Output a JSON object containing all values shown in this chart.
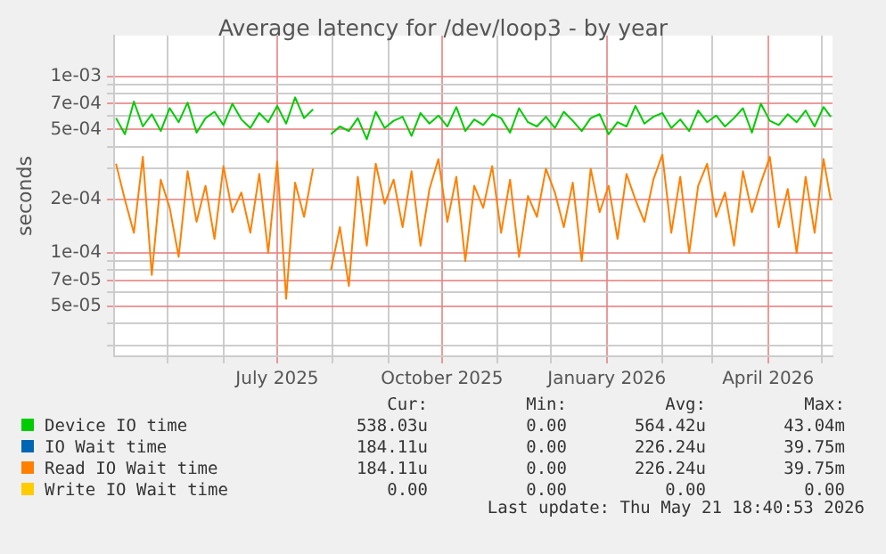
{
  "chart_data": {
    "type": "line",
    "title": "Average latency for /dev/loop3 - by year",
    "ylabel": "seconds",
    "log": "y",
    "grid": true,
    "legend": "bottom",
    "marker": "none",
    "line_style": "solid",
    "ylim": [
      2.6e-05,
      0.0017
    ],
    "yticks": [
      {
        "value": 3e-05,
        "label": null
      },
      {
        "value": 4e-05,
        "label": null
      },
      {
        "value": 5e-05,
        "label": "5e-05"
      },
      {
        "value": 6e-05,
        "label": null
      },
      {
        "value": 7e-05,
        "label": "7e-05"
      },
      {
        "value": 8e-05,
        "label": null
      },
      {
        "value": 9e-05,
        "label": null
      },
      {
        "value": 0.0001,
        "label": "1e-04"
      },
      {
        "value": 0.0002,
        "label": "2e-04"
      },
      {
        "value": 0.0003,
        "label": null
      },
      {
        "value": 0.0004,
        "label": null
      },
      {
        "value": 0.0005,
        "label": "5e-04"
      },
      {
        "value": 0.0006,
        "label": null
      },
      {
        "value": 0.0007,
        "label": "7e-04"
      },
      {
        "value": 0.0008,
        "label": null
      },
      {
        "value": 0.0009,
        "label": null
      },
      {
        "value": 0.001,
        "label": "1e-03"
      }
    ],
    "xlim": [
      "2025-04-01",
      "2026-05-07"
    ],
    "xticks": [
      {
        "value": "2025-05-01",
        "label": null
      },
      {
        "value": "2025-06-01",
        "label": null
      },
      {
        "value": "2025-07-01",
        "label": "July 2025"
      },
      {
        "value": "2025-08-01",
        "label": null
      },
      {
        "value": "2025-09-01",
        "label": null
      },
      {
        "value": "2025-10-01",
        "label": "October 2025"
      },
      {
        "value": "2025-11-01",
        "label": null
      },
      {
        "value": "2025-12-01",
        "label": null
      },
      {
        "value": "2026-01-01",
        "label": "January 2026"
      },
      {
        "value": "2026-02-01",
        "label": null
      },
      {
        "value": "2026-03-01",
        "label": null
      },
      {
        "value": "2026-04-01",
        "label": "April 2026"
      },
      {
        "value": "2026-05-01",
        "label": null
      }
    ],
    "x": [
      "2025-04-02",
      "2025-04-07",
      "2025-04-12",
      "2025-04-17",
      "2025-04-22",
      "2025-04-27",
      "2025-05-02",
      "2025-05-07",
      "2025-05-12",
      "2025-05-17",
      "2025-05-22",
      "2025-05-27",
      "2025-06-01",
      "2025-06-06",
      "2025-06-11",
      "2025-06-16",
      "2025-06-21",
      "2025-06-26",
      "2025-07-01",
      "2025-07-06",
      "2025-07-11",
      "2025-07-16",
      "2025-07-21",
      "2025-07-26",
      "2025-07-31",
      "2025-08-05",
      "2025-08-10",
      "2025-08-15",
      "2025-08-20",
      "2025-08-25",
      "2025-08-30",
      "2025-09-04",
      "2025-09-09",
      "2025-09-14",
      "2025-09-19",
      "2025-09-24",
      "2025-09-29",
      "2025-10-04",
      "2025-10-09",
      "2025-10-14",
      "2025-10-19",
      "2025-10-24",
      "2025-10-29",
      "2025-11-03",
      "2025-11-08",
      "2025-11-13",
      "2025-11-18",
      "2025-11-23",
      "2025-11-28",
      "2025-12-03",
      "2025-12-08",
      "2025-12-13",
      "2025-12-18",
      "2025-12-23",
      "2025-12-28",
      "2026-01-02",
      "2026-01-07",
      "2026-01-12",
      "2026-01-17",
      "2026-01-22",
      "2026-01-27",
      "2026-02-01",
      "2026-02-06",
      "2026-02-11",
      "2026-02-16",
      "2026-02-21",
      "2026-02-26",
      "2026-03-03",
      "2026-03-08",
      "2026-03-13",
      "2026-03-18",
      "2026-03-23",
      "2026-03-28",
      "2026-04-02",
      "2026-04-07",
      "2026-04-12",
      "2026-04-17",
      "2026-04-22",
      "2026-04-27",
      "2026-05-02",
      "2026-05-06"
    ],
    "series": [
      {
        "name": "Device IO time",
        "color": "#00cc00",
        "values": [
          0.00058,
          0.00047,
          0.00072,
          0.00052,
          0.00061,
          0.00049,
          0.00066,
          0.00055,
          0.00071,
          0.00048,
          0.00058,
          0.00063,
          0.00053,
          0.0007,
          0.00057,
          0.00051,
          0.00062,
          0.00055,
          0.00068,
          0.00054,
          0.00076,
          0.00058,
          0.00065,
          null,
          0.00047,
          0.00052,
          0.00049,
          0.00058,
          0.00044,
          0.00063,
          0.00051,
          0.00056,
          0.00059,
          0.00046,
          0.00062,
          0.00054,
          0.0006,
          0.00052,
          0.00067,
          0.00049,
          0.00057,
          0.00053,
          0.00061,
          0.00058,
          0.00048,
          0.00066,
          0.00055,
          0.00052,
          0.00059,
          0.00051,
          0.00063,
          0.00056,
          0.00049,
          0.00058,
          0.00061,
          0.00047,
          0.00055,
          0.00052,
          0.00068,
          0.00054,
          0.00059,
          0.00062,
          0.00051,
          0.00057,
          0.00049,
          0.00064,
          0.00055,
          0.0006,
          0.00052,
          0.00058,
          0.00066,
          0.00048,
          0.0007,
          0.00056,
          0.00053,
          0.00061,
          0.00055,
          0.00064,
          0.00052,
          0.00067,
          0.00059
        ]
      },
      {
        "name": "IO Wait time",
        "color": "#0066b3",
        "values": [
          null,
          null,
          null,
          null,
          null,
          null,
          null,
          null,
          null,
          null,
          null,
          null,
          null,
          null,
          null,
          null,
          null,
          null,
          null,
          null,
          null,
          null,
          null,
          null,
          null,
          null,
          null,
          null,
          null,
          null,
          null,
          null,
          null,
          null,
          null,
          null,
          null,
          null,
          null,
          null,
          null,
          null,
          null,
          null,
          null,
          null,
          null,
          null,
          null,
          null,
          null,
          null,
          null,
          null,
          null,
          null,
          null,
          null,
          null,
          null,
          null,
          null,
          null,
          null,
          null,
          null,
          null,
          null,
          null,
          null,
          null,
          null,
          null,
          null,
          null,
          null,
          null,
          null,
          null,
          null,
          null
        ]
      },
      {
        "name": "Read IO Wait time",
        "color": "#ff8000",
        "values": [
          0.00032,
          0.0002,
          0.00013,
          0.00035,
          7.5e-05,
          0.00026,
          0.00018,
          9.5e-05,
          0.00029,
          0.00015,
          0.00024,
          0.00012,
          0.00031,
          0.00017,
          0.00022,
          0.00013,
          0.00028,
          0.0001,
          0.00033,
          5.5e-05,
          0.00025,
          0.00016,
          0.0003,
          null,
          8e-05,
          0.00014,
          6.5e-05,
          0.00027,
          0.00011,
          0.00032,
          0.00019,
          0.00026,
          0.00014,
          0.00029,
          0.00011,
          0.00023,
          0.00034,
          0.00015,
          0.00027,
          9e-05,
          0.00024,
          0.00018,
          0.00031,
          0.00013,
          0.00026,
          9.5e-05,
          0.00021,
          0.00016,
          0.0003,
          0.00022,
          0.00014,
          0.00025,
          9e-05,
          0.0003,
          0.00017,
          0.00024,
          0.00012,
          0.00028,
          0.0002,
          0.00015,
          0.00026,
          0.00036,
          0.00013,
          0.00027,
          0.0001,
          0.00024,
          0.00032,
          0.00016,
          0.00022,
          0.00011,
          0.00029,
          0.00017,
          0.00025,
          0.00035,
          0.00014,
          0.00023,
          0.0001,
          0.00027,
          0.00013,
          0.00034,
          0.0002
        ]
      },
      {
        "name": "Write IO Wait time",
        "color": "#ffcc00",
        "values": [
          null,
          null,
          null,
          null,
          null,
          null,
          null,
          null,
          null,
          null,
          null,
          null,
          null,
          null,
          null,
          null,
          null,
          null,
          null,
          null,
          null,
          null,
          null,
          null,
          null,
          null,
          null,
          null,
          null,
          null,
          null,
          null,
          null,
          null,
          null,
          null,
          null,
          null,
          null,
          null,
          null,
          null,
          null,
          null,
          null,
          null,
          null,
          null,
          null,
          null,
          null,
          null,
          null,
          null,
          null,
          null,
          null,
          null,
          null,
          null,
          null,
          null,
          null,
          null,
          null,
          null,
          null,
          null,
          null,
          null,
          null,
          null,
          null,
          null,
          null,
          null,
          null,
          null,
          null,
          null,
          null
        ]
      }
    ],
    "annotations": [
      "Cur:",
      "Min:",
      "Avg:",
      "Max:",
      "538.03u",
      "0.00",
      "564.42u",
      "43.04m",
      "184.11u",
      "0.00",
      "226.24u",
      "39.75m",
      "184.11u",
      "0.00",
      "226.24u",
      "39.75m",
      "0.00",
      "0.00",
      "0.00",
      "0.00",
      "Last update: Thu May 21 18:40:53 2026"
    ]
  }
}
